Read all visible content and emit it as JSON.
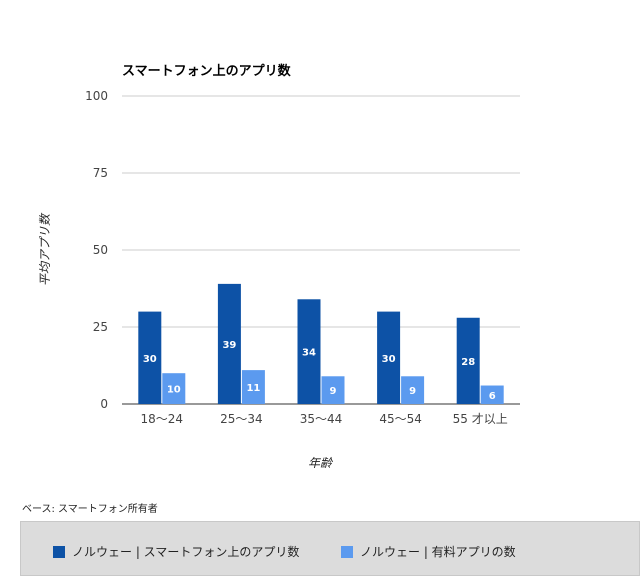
{
  "colors": {
    "series1": "#0d52a6",
    "series2": "#5b9aef",
    "grid": "#cccccc",
    "axis": "#333333"
  },
  "chart_data": {
    "type": "bar",
    "title": "スマートフォン上のアプリ数",
    "xlabel": "年齢",
    "ylabel": "平均アプリ数",
    "ylim": [
      0,
      100
    ],
    "yticks": [
      0,
      25,
      50,
      75,
      100
    ],
    "grid": true,
    "legend_position": "bottom",
    "categories": [
      "18〜24",
      "25〜34",
      "35〜44",
      "45〜54",
      "55 才以上"
    ],
    "series": [
      {
        "name": "ノルウェー | スマートフォン上のアプリ数",
        "values": [
          30,
          39,
          34,
          30,
          28
        ]
      },
      {
        "name": "ノルウェー | 有料アプリの数",
        "values": [
          10,
          11,
          9,
          9,
          6
        ]
      }
    ]
  },
  "footnote": "ベース: スマートフォン所有者"
}
